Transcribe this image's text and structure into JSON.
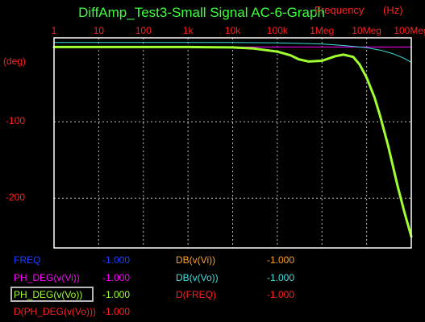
{
  "title": "DiffAmp_Test3-Small Signal AC-6-Graph",
  "x_axis": {
    "label": "Frequency",
    "unit": "(Hz)"
  },
  "y_axis": {
    "unit": "(deg)"
  },
  "colors": {
    "background": "#000000",
    "axis_text": "#ff2020",
    "title": "#3cff3c",
    "grid": "#bbbbbb",
    "frame": "#ffffff"
  },
  "chart_data": {
    "type": "line",
    "title": "DiffAmp_Test3-Small Signal AC-6-Graph",
    "xlabel": "Frequency (Hz)",
    "ylabel": "(deg)",
    "x_scale": "log",
    "xlim": [
      1,
      100000000
    ],
    "ylim": [
      -265,
      10
    ],
    "x_tick_labels": [
      "1",
      "10",
      "100",
      "1k",
      "10k",
      "100k",
      "1Meg",
      "10Meg",
      "100Meg"
    ],
    "x_tick_values": [
      1,
      10,
      100,
      1000,
      10000,
      100000,
      1000000,
      10000000,
      100000000
    ],
    "y_tick_labels": [
      "-100",
      "-200"
    ],
    "y_tick_values": [
      -100,
      -200
    ],
    "grid": true,
    "series": [
      {
        "name": "PH_DEG(v(Vi))",
        "color": "#ff00ff",
        "x": [
          1,
          1000,
          100000,
          300000,
          1000000,
          3000000,
          10000000,
          30000000,
          100000000
        ],
        "y": [
          -2,
          -2,
          -2,
          -2,
          -2,
          -2,
          -2,
          -2,
          -2
        ]
      },
      {
        "name": "PH_DEG(v(Vo))",
        "color": "#a0ff30",
        "x": [
          1,
          100,
          1000,
          10000,
          30000,
          100000,
          200000,
          300000,
          500000,
          1000000,
          2000000,
          3000000,
          5000000,
          7000000,
          10000000,
          15000000,
          20000000,
          30000000,
          50000000,
          70000000,
          100000000
        ],
        "y": [
          -2,
          -2,
          -2,
          -2.5,
          -4,
          -8,
          -13,
          -18,
          -21,
          -20,
          -14,
          -12,
          -15,
          -25,
          -42,
          -68,
          -92,
          -130,
          -185,
          -218,
          -250
        ]
      },
      {
        "name": "DB(v(Vo))",
        "color": "#40e0e0",
        "x": [
          1,
          1000,
          10000,
          100000,
          1000000,
          3000000,
          10000000,
          20000000,
          40000000,
          70000000,
          100000000
        ],
        "y": [
          4,
          4,
          4,
          3.5,
          2,
          0,
          -3,
          -6,
          -11,
          -17,
          -22
        ]
      }
    ]
  },
  "legend": [
    {
      "name": "FREQ",
      "value": "-1.000",
      "color": "#2040ff",
      "value_color": "#2040ff"
    },
    {
      "name": "DB(v(Vi))",
      "value": "-1.000",
      "color": "#ffa020",
      "value_color": "#ffa020"
    },
    {
      "name": "PH_DEG(v(Vi))",
      "value": "-1.000",
      "color": "#ff00ff",
      "value_color": "#ff00ff"
    },
    {
      "name": "DB(v(Vo))",
      "value": "-1.000",
      "color": "#40e0e0",
      "value_color": "#40e0e0"
    },
    {
      "name": "PH_DEG(v(Vo))",
      "value": "-1.000",
      "color": "#a0ff30",
      "value_color": "#a0ff30",
      "selected": true
    },
    {
      "name": "D(FREQ)",
      "value": "-1.000",
      "color": "#ff2020",
      "value_color": "#ff2020"
    },
    {
      "name": "D(PH_DEG(v(Vo)))",
      "value": "-1.000",
      "color": "#ff2020",
      "value_color": "#ff2020"
    }
  ]
}
